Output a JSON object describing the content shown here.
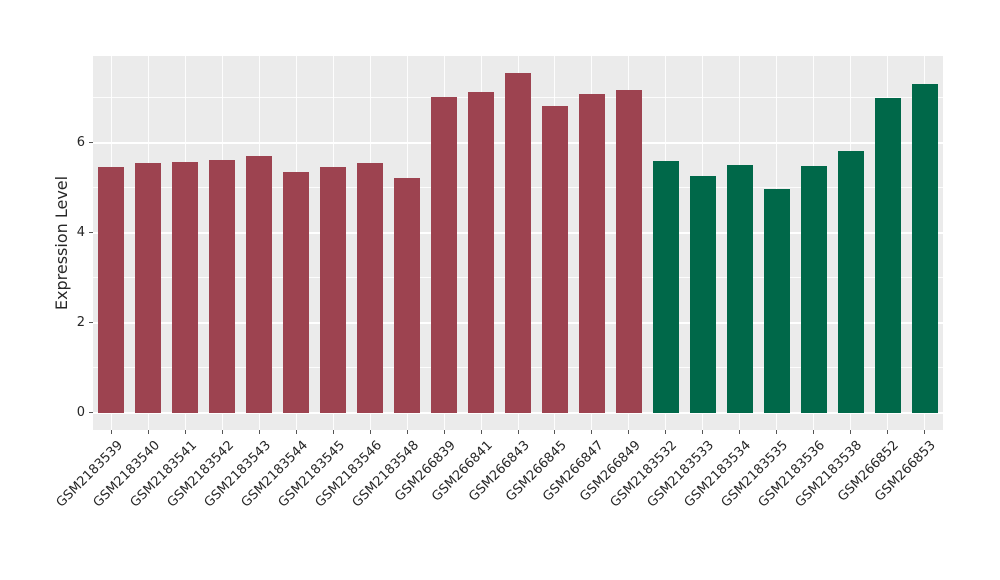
{
  "chart_data": {
    "type": "bar",
    "title": "",
    "xlabel": "",
    "ylabel": "Expression Level",
    "categories": [
      "GSM2183539",
      "GSM2183540",
      "GSM2183541",
      "GSM2183542",
      "GSM2183543",
      "GSM2183544",
      "GSM2183545",
      "GSM2183546",
      "GSM2183548",
      "GSM266839",
      "GSM266841",
      "GSM266843",
      "GSM266845",
      "GSM266847",
      "GSM266849",
      "GSM2183532",
      "GSM2183533",
      "GSM2183534",
      "GSM2183535",
      "GSM2183536",
      "GSM2183538",
      "GSM266852",
      "GSM266853"
    ],
    "values": [
      5.47,
      5.55,
      5.58,
      5.63,
      5.7,
      5.36,
      5.47,
      5.55,
      5.23,
      7.02,
      7.13,
      7.55,
      6.82,
      7.09,
      7.17,
      5.6,
      5.27,
      5.5,
      4.97,
      5.49,
      5.81,
      7.0,
      7.3
    ],
    "bar_groups": [
      0,
      0,
      0,
      0,
      0,
      0,
      0,
      0,
      0,
      0,
      0,
      0,
      0,
      0,
      0,
      1,
      1,
      1,
      1,
      1,
      1,
      1,
      1
    ],
    "group_colors": [
      "#9d4350",
      "#006849"
    ],
    "yticks": [
      0,
      2,
      4,
      6
    ],
    "minor_yticks": [
      1,
      3,
      5,
      7
    ],
    "ylim": [
      -0.38,
      7.93
    ],
    "bar_width_frac": 0.7,
    "grid": "on",
    "legend_position": "none",
    "panel_bg": "#ebebeb",
    "grid_color": "#ffffff",
    "tick_color": "#555555",
    "text_color": "#262626",
    "x_label_rotation_deg": 45
  }
}
